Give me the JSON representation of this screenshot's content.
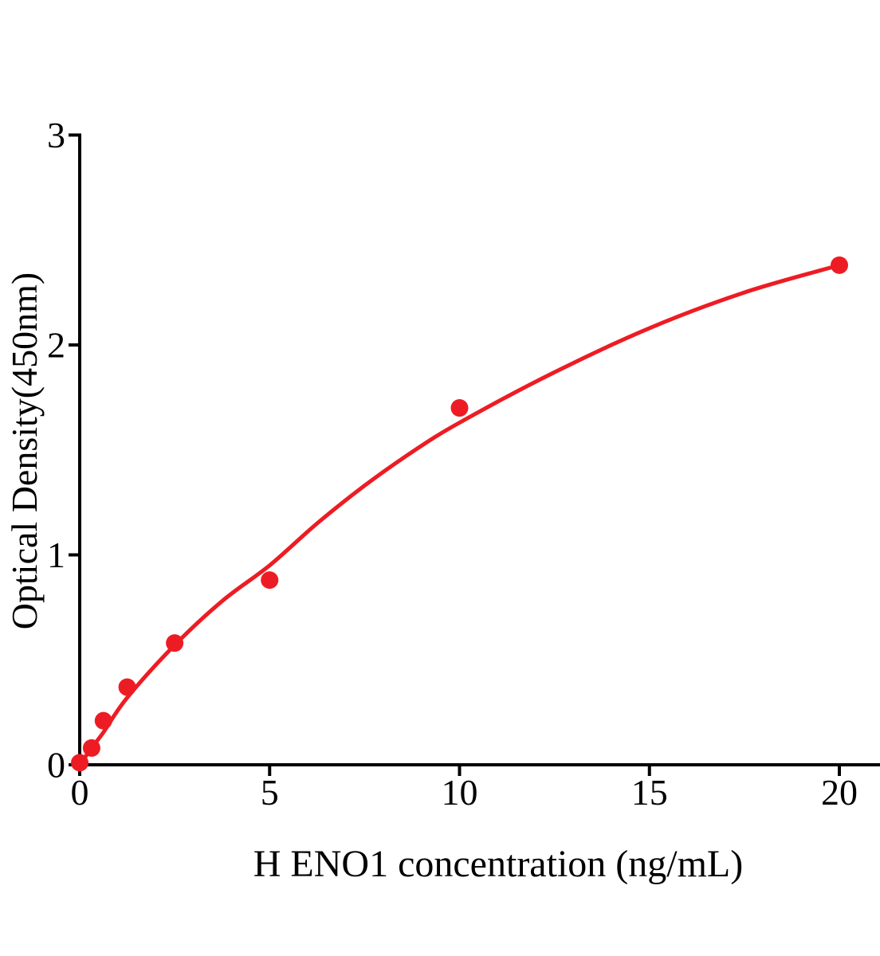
{
  "chart_data": {
    "type": "scatter",
    "title": "",
    "xlabel": "H ENO1 concentration (ng/mL)",
    "ylabel": "Optical Density(450nm)",
    "xlim": [
      0,
      21.1
    ],
    "ylim": [
      0,
      3
    ],
    "x_ticks": [
      0,
      5,
      10,
      15,
      20
    ],
    "y_ticks": [
      0,
      1,
      2,
      3
    ],
    "grid": false,
    "legend": false,
    "colors": {
      "curve": "#ed1c24",
      "points": "#ed1c24",
      "axis": "#000000",
      "background": "#ffffff"
    },
    "series": [
      {
        "marker": "circle",
        "points": [
          {
            "x": 0,
            "y": 0.01
          },
          {
            "x": 0.313,
            "y": 0.08
          },
          {
            "x": 0.625,
            "y": 0.21
          },
          {
            "x": 1.25,
            "y": 0.37
          },
          {
            "x": 2.5,
            "y": 0.58
          },
          {
            "x": 5,
            "y": 0.88
          },
          {
            "x": 10,
            "y": 1.7
          },
          {
            "x": 20,
            "y": 2.38
          }
        ]
      }
    ],
    "fit_curve": {
      "samples": [
        [
          0,
          0.0
        ],
        [
          0.313,
          0.08
        ],
        [
          0.625,
          0.155
        ],
        [
          1.25,
          0.32
        ],
        [
          2.5,
          0.57
        ],
        [
          3.75,
          0.78
        ],
        [
          5,
          0.95
        ],
        [
          6.25,
          1.15
        ],
        [
          7.5,
          1.33
        ],
        [
          8.75,
          1.49
        ],
        [
          10,
          1.63
        ],
        [
          12.5,
          1.87
        ],
        [
          15,
          2.08
        ],
        [
          17.5,
          2.25
        ],
        [
          20,
          2.38
        ]
      ]
    }
  }
}
